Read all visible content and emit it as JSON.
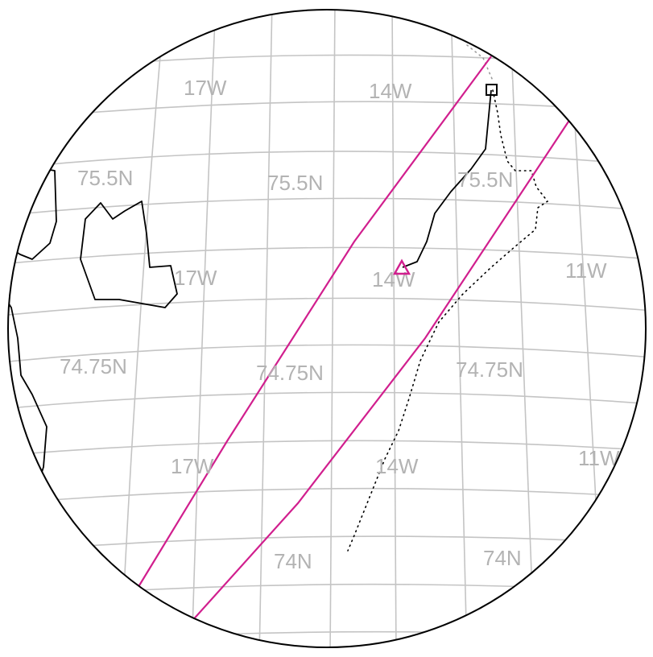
{
  "map": {
    "projection": "orthographic (circular view)",
    "graticule_color": "#c4c4c4",
    "label_color": "#b3b3b3",
    "accent_color": "#d11f8e",
    "grid_labels": {
      "lon_top_17w": "17W",
      "lon_top_14w": "14W",
      "lat_upper_left": "75.5N",
      "lat_upper_mid": "75.5N",
      "lat_upper_right": "75.5N",
      "lon_mid_17w": "17W",
      "lon_mid_14w": "14W",
      "lon_mid_11w": "11W",
      "lat_mid_left": "74.75N",
      "lat_mid_mid": "74.75N",
      "lat_mid_right": "74.75N",
      "lon_low_17w": "17W",
      "lon_low_14w": "14W",
      "lon_low_11w": "11W",
      "lat_low_mid": "74N",
      "lat_low_right": "74N"
    },
    "markers": {
      "start_marker": "triangle-icon",
      "end_marker": "square-icon"
    }
  }
}
